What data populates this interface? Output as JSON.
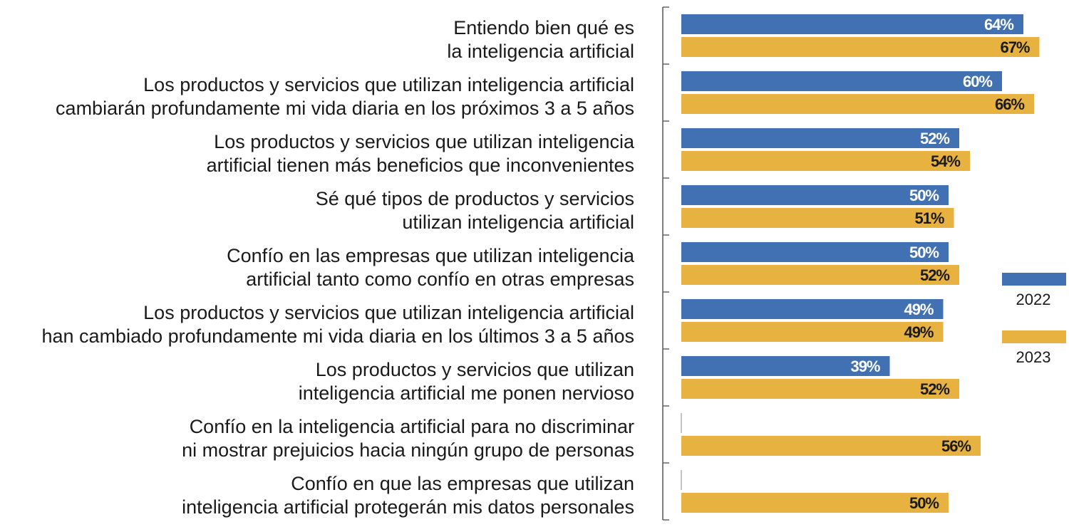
{
  "chart_data": {
    "type": "bar",
    "orientation": "horizontal",
    "categories": [
      [
        "Entiendo bien qué es",
        "la inteligencia artificial"
      ],
      [
        "Los productos y servicios que utilizan inteligencia artificial",
        "cambiarán profundamente mi vida diaria en los próximos 3 a 5 años"
      ],
      [
        "Los productos y servicios que utilizan inteligencia",
        "artificial tienen más beneficios que inconvenientes"
      ],
      [
        "Sé qué tipos de productos y servicios",
        "utilizan inteligencia artificial"
      ],
      [
        "Confío en las empresas que utilizan inteligencia",
        "artificial tanto como confío en otras empresas"
      ],
      [
        "Los productos y servicios que utilizan inteligencia artificial",
        "han cambiado profundamente mi vida diaria en los últimos 3 a 5 años"
      ],
      [
        "Los productos y servicios que utilizan",
        "inteligencia artificial me ponen nervioso"
      ],
      [
        "Confío en la inteligencia artificial para no discriminar",
        "ni mostrar prejuicios hacia ningún grupo de personas"
      ],
      [
        "Confío en que las empresas que utilizan",
        "inteligencia artificial protegerán mis datos personales"
      ]
    ],
    "series": [
      {
        "name": "2022",
        "color": "#4171b2",
        "label_color": "#ffffff",
        "values": [
          64,
          60,
          52,
          50,
          50,
          49,
          39,
          null,
          null
        ]
      },
      {
        "name": "2023",
        "color": "#e8b240",
        "label_color": "#1a1a1a",
        "values": [
          67,
          66,
          54,
          51,
          52,
          49,
          52,
          56,
          50
        ]
      }
    ],
    "value_suffix": "%",
    "xlim": [
      0,
      100
    ],
    "grid": false,
    "legend_position": "right"
  }
}
